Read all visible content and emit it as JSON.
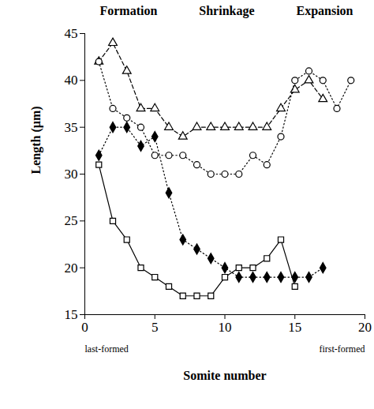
{
  "chart_data": {
    "type": "line",
    "annotations": {
      "phases": [
        "Formation",
        "Shrinkage",
        "Expansion"
      ],
      "ends": [
        "last-formed",
        "first-formed"
      ]
    },
    "x_label": "Somite number",
    "y_label": "Length (µm)",
    "xlim": [
      0,
      20
    ],
    "xticks": [
      0,
      5,
      10,
      15,
      20
    ],
    "ylim": [
      15,
      45
    ],
    "yticks": [
      15,
      20,
      25,
      30,
      35,
      40,
      45
    ],
    "series": [
      {
        "color": "#000000",
        "marker": "open-triangle",
        "line_style": "dashed",
        "x": [
          1,
          2,
          3,
          4,
          5,
          6,
          7,
          8,
          9,
          10,
          11,
          12,
          13,
          14,
          15,
          16,
          17
        ],
        "values": [
          42,
          44,
          41,
          37,
          37,
          35,
          34,
          35,
          35,
          35,
          35,
          35,
          35,
          37,
          39,
          40,
          38
        ]
      },
      {
        "color": "#000000",
        "marker": "open-circle",
        "line_style": "dotted",
        "x": [
          1,
          2,
          3,
          4,
          5,
          6,
          7,
          8,
          9,
          10,
          11,
          12,
          13,
          14,
          15,
          16,
          17,
          18,
          19
        ],
        "values": [
          42,
          37,
          36,
          35,
          32,
          32,
          32,
          31,
          30,
          30,
          30,
          32,
          31,
          34,
          40,
          41,
          40,
          37,
          40
        ]
      },
      {
        "color": "#000000",
        "marker": "filled-diamond",
        "line_style": "dotted",
        "x": [
          1,
          2,
          3,
          4,
          5,
          6,
          7,
          8,
          9,
          10,
          11,
          12,
          13,
          14,
          15,
          16,
          17
        ],
        "values": [
          32,
          35,
          35,
          33,
          34,
          28,
          23,
          22,
          21,
          20,
          19,
          19,
          19,
          19,
          19,
          19,
          20
        ]
      },
      {
        "color": "#000000",
        "marker": "open-square",
        "line_style": "solid",
        "x": [
          1,
          2,
          3,
          4,
          5,
          6,
          7,
          8,
          9,
          10,
          11,
          12,
          13,
          14,
          15
        ],
        "values": [
          31,
          25,
          23,
          20,
          19,
          18,
          17,
          17,
          17,
          19,
          20,
          20,
          21,
          23,
          18
        ]
      }
    ]
  }
}
